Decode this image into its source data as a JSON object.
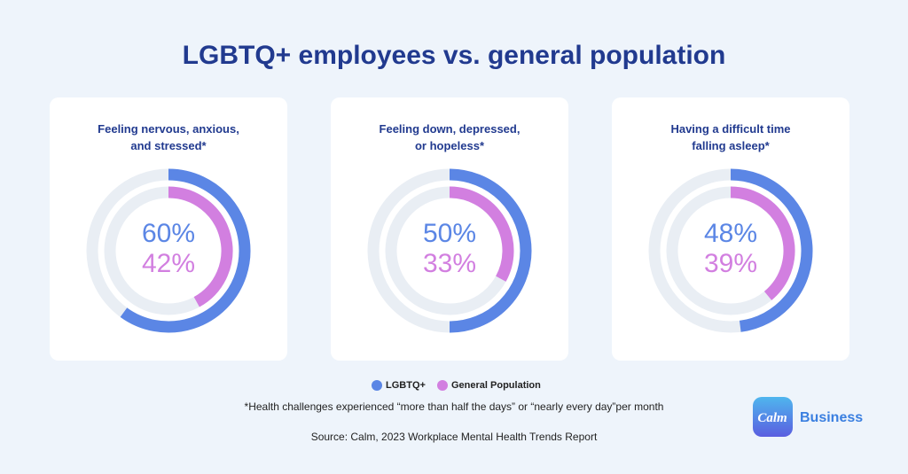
{
  "title": "LGBTQ+ employees vs. general population",
  "chart_data": [
    {
      "type": "radial",
      "title": "Feeling nervous, anxious, and stressed*",
      "ylim": [
        0,
        100
      ],
      "series": [
        {
          "name": "LGBTQ+",
          "color": "#5b86e5",
          "values": [
            60
          ],
          "value_labels": [
            "60%"
          ]
        },
        {
          "name": "General Population",
          "color": "#d27fe0",
          "values": [
            42
          ],
          "value_labels": [
            "42%"
          ]
        }
      ]
    },
    {
      "type": "radial",
      "title": "Feeling down, depressed, or hopeless*",
      "ylim": [
        0,
        100
      ],
      "series": [
        {
          "name": "LGBTQ+",
          "color": "#5b86e5",
          "values": [
            50
          ],
          "value_labels": [
            "50%"
          ]
        },
        {
          "name": "General Population",
          "color": "#d27fe0",
          "values": [
            33
          ],
          "value_labels": [
            "33%"
          ]
        }
      ]
    },
    {
      "type": "radial",
      "title": "Having a difficult time falling asleep*",
      "ylim": [
        0,
        100
      ],
      "series": [
        {
          "name": "LGBTQ+",
          "color": "#5b86e5",
          "values": [
            48
          ],
          "value_labels": [
            "48%"
          ]
        },
        {
          "name": "General Population",
          "color": "#d27fe0",
          "values": [
            39
          ],
          "value_labels": [
            "39%"
          ]
        }
      ]
    }
  ],
  "footnote": "*Health challenges experienced “more than half the days” or “nearly every day”per month",
  "source": "Source: Calm, 2023 Workplace Mental Health Trends Report",
  "logo": {
    "mark": "Calm",
    "text": "Business"
  }
}
